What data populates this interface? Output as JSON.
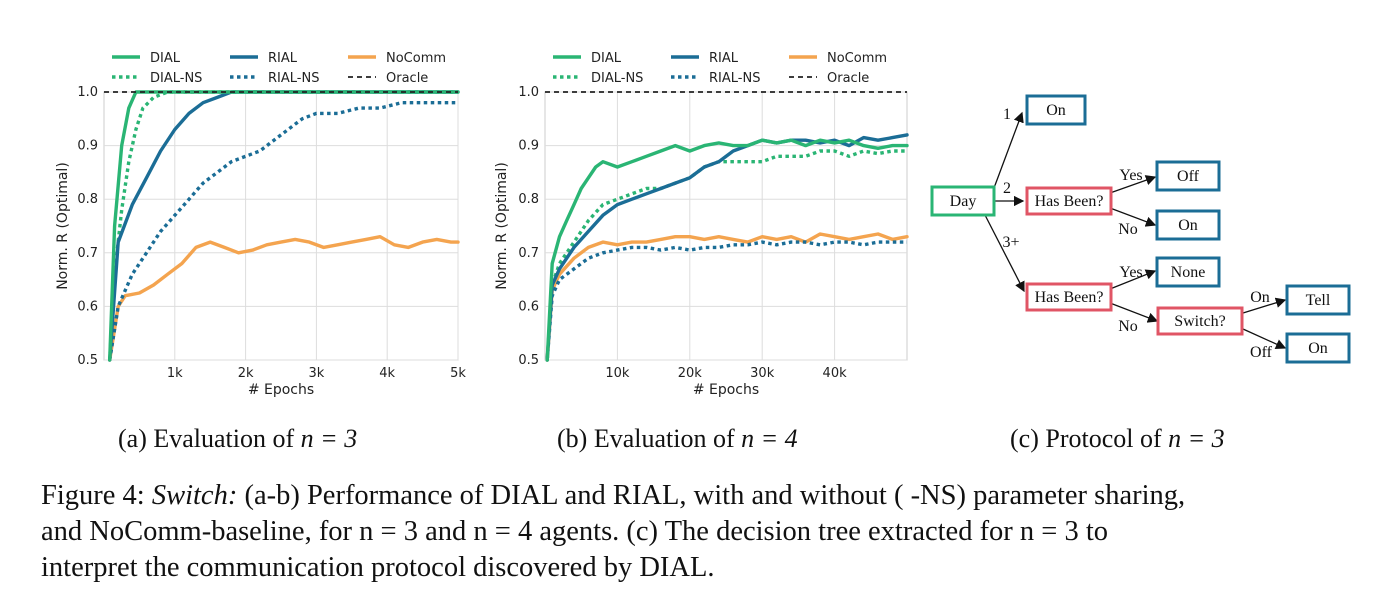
{
  "legend": [
    {
      "label": "DIAL",
      "color": "#2ab574",
      "dash": "solid"
    },
    {
      "label": "RIAL",
      "color": "#1b6d96",
      "dash": "solid"
    },
    {
      "label": "NoComm",
      "color": "#f4a44f",
      "dash": "solid"
    },
    {
      "label": "DIAL-NS",
      "color": "#2ab574",
      "dash": "dotted"
    },
    {
      "label": "RIAL-NS",
      "color": "#1b6d96",
      "dash": "dotted"
    },
    {
      "label": "Oracle",
      "color": "#222222",
      "dash": "dashed"
    }
  ],
  "chart_data": [
    {
      "type": "line",
      "xlabel": "# Epochs",
      "ylabel": "Norm. R (Optimal)",
      "xlim": [
        0,
        5000
      ],
      "ylim": [
        0.5,
        1.0
      ],
      "xticks": [
        1000,
        2000,
        3000,
        4000,
        5000
      ],
      "xtick_labels": [
        "1k",
        "2k",
        "3k",
        "4k",
        "5k"
      ],
      "yticks": [
        0.5,
        0.6,
        0.7,
        0.8,
        0.9,
        1.0
      ],
      "ytick_labels": [
        "0.5",
        "0.6",
        "0.7",
        "0.8",
        "0.9",
        "1.0"
      ],
      "grid": true,
      "series": [
        {
          "name": "DIAL",
          "x": [
            80,
            150,
            250,
            350,
            450,
            600,
            1000,
            2000,
            3000,
            4000,
            5000
          ],
          "y": [
            0.5,
            0.75,
            0.9,
            0.97,
            1.0,
            1.0,
            1.0,
            1.0,
            1.0,
            1.0,
            1.0
          ]
        },
        {
          "name": "DIAL-NS",
          "x": [
            80,
            150,
            250,
            350,
            450,
            550,
            700,
            900,
            1500,
            3000,
            5000
          ],
          "y": [
            0.5,
            0.66,
            0.78,
            0.87,
            0.93,
            0.97,
            0.99,
            1.0,
            1.0,
            1.0,
            1.0
          ]
        },
        {
          "name": "RIAL",
          "x": [
            80,
            200,
            400,
            600,
            800,
            1000,
            1200,
            1400,
            1600,
            1800,
            2000,
            3000,
            4000,
            5000
          ],
          "y": [
            0.5,
            0.72,
            0.79,
            0.84,
            0.89,
            0.93,
            0.96,
            0.98,
            0.99,
            1.0,
            1.0,
            1.0,
            1.0,
            1.0
          ]
        },
        {
          "name": "RIAL-NS",
          "x": [
            80,
            200,
            400,
            600,
            800,
            1000,
            1200,
            1400,
            1600,
            1800,
            2000,
            2200,
            2500,
            2800,
            3000,
            3300,
            3600,
            3900,
            4200,
            4600,
            5000
          ],
          "y": [
            0.5,
            0.6,
            0.66,
            0.7,
            0.74,
            0.77,
            0.8,
            0.83,
            0.85,
            0.87,
            0.88,
            0.89,
            0.92,
            0.95,
            0.96,
            0.96,
            0.97,
            0.97,
            0.98,
            0.98,
            0.98
          ]
        },
        {
          "name": "NoComm",
          "x": [
            80,
            200,
            300,
            500,
            700,
            900,
            1100,
            1300,
            1500,
            1700,
            1900,
            2100,
            2300,
            2500,
            2700,
            2900,
            3100,
            3300,
            3500,
            3700,
            3900,
            4100,
            4300,
            4500,
            4700,
            4900,
            5000
          ],
          "y": [
            0.5,
            0.6,
            0.62,
            0.625,
            0.64,
            0.66,
            0.68,
            0.71,
            0.72,
            0.71,
            0.7,
            0.705,
            0.715,
            0.72,
            0.725,
            0.72,
            0.71,
            0.715,
            0.72,
            0.725,
            0.73,
            0.715,
            0.71,
            0.72,
            0.725,
            0.72,
            0.72
          ]
        },
        {
          "name": "Oracle",
          "x": [
            0,
            5000
          ],
          "y": [
            1.0,
            1.0
          ]
        }
      ]
    },
    {
      "type": "line",
      "xlabel": "# Epochs",
      "ylabel": "Norm. R (Optimal)",
      "xlim": [
        0,
        50000
      ],
      "ylim": [
        0.5,
        1.0
      ],
      "xticks": [
        10000,
        20000,
        30000,
        40000
      ],
      "xtick_labels": [
        "10k",
        "20k",
        "30k",
        "40k"
      ],
      "yticks": [
        0.5,
        0.6,
        0.7,
        0.8,
        0.9,
        1.0
      ],
      "ytick_labels": [
        "0.5",
        "0.6",
        "0.7",
        "0.8",
        "0.9",
        "1.0"
      ],
      "grid": true,
      "series": [
        {
          "name": "DIAL",
          "x": [
            300,
            1000,
            2000,
            3000,
            4000,
            5000,
            6000,
            7000,
            8000,
            10000,
            12000,
            14000,
            16000,
            18000,
            20000,
            22000,
            24000,
            26000,
            28000,
            30000,
            32000,
            34000,
            36000,
            38000,
            40000,
            42000,
            44000,
            46000,
            48000,
            50000
          ],
          "y": [
            0.5,
            0.68,
            0.73,
            0.76,
            0.79,
            0.82,
            0.84,
            0.86,
            0.87,
            0.86,
            0.87,
            0.88,
            0.89,
            0.9,
            0.89,
            0.9,
            0.905,
            0.9,
            0.9,
            0.91,
            0.905,
            0.91,
            0.9,
            0.91,
            0.905,
            0.91,
            0.9,
            0.895,
            0.9,
            0.9
          ]
        },
        {
          "name": "DIAL-NS",
          "x": [
            300,
            1000,
            2000,
            4000,
            6000,
            8000,
            10000,
            12000,
            14000,
            16000,
            18000,
            20000,
            22000,
            24000,
            26000,
            28000,
            30000,
            32000,
            34000,
            36000,
            38000,
            40000,
            42000,
            44000,
            46000,
            48000,
            50000
          ],
          "y": [
            0.5,
            0.64,
            0.68,
            0.72,
            0.76,
            0.79,
            0.8,
            0.81,
            0.82,
            0.82,
            0.83,
            0.84,
            0.86,
            0.87,
            0.87,
            0.87,
            0.87,
            0.88,
            0.88,
            0.88,
            0.89,
            0.89,
            0.88,
            0.89,
            0.885,
            0.89,
            0.89
          ]
        },
        {
          "name": "RIAL",
          "x": [
            300,
            1000,
            2000,
            4000,
            6000,
            8000,
            10000,
            12000,
            14000,
            16000,
            18000,
            20000,
            22000,
            24000,
            26000,
            28000,
            30000,
            32000,
            34000,
            36000,
            38000,
            40000,
            42000,
            44000,
            46000,
            48000,
            50000
          ],
          "y": [
            0.5,
            0.64,
            0.67,
            0.71,
            0.74,
            0.77,
            0.79,
            0.8,
            0.81,
            0.82,
            0.83,
            0.84,
            0.86,
            0.87,
            0.89,
            0.9,
            0.91,
            0.905,
            0.91,
            0.91,
            0.905,
            0.91,
            0.9,
            0.915,
            0.91,
            0.915,
            0.92
          ]
        },
        {
          "name": "RIAL-NS",
          "x": [
            300,
            1000,
            2000,
            4000,
            6000,
            8000,
            10000,
            12000,
            14000,
            16000,
            18000,
            20000,
            22000,
            24000,
            26000,
            28000,
            30000,
            32000,
            34000,
            36000,
            38000,
            40000,
            42000,
            44000,
            46000,
            48000,
            50000
          ],
          "y": [
            0.5,
            0.62,
            0.65,
            0.67,
            0.69,
            0.7,
            0.705,
            0.71,
            0.71,
            0.705,
            0.71,
            0.705,
            0.71,
            0.71,
            0.715,
            0.715,
            0.72,
            0.715,
            0.72,
            0.72,
            0.715,
            0.72,
            0.72,
            0.715,
            0.72,
            0.72,
            0.72
          ]
        },
        {
          "name": "NoComm",
          "x": [
            300,
            1000,
            2000,
            4000,
            6000,
            8000,
            10000,
            12000,
            14000,
            16000,
            18000,
            20000,
            22000,
            24000,
            26000,
            28000,
            30000,
            32000,
            34000,
            36000,
            38000,
            40000,
            42000,
            44000,
            46000,
            48000,
            50000
          ],
          "y": [
            0.5,
            0.63,
            0.66,
            0.69,
            0.71,
            0.72,
            0.715,
            0.72,
            0.72,
            0.725,
            0.73,
            0.73,
            0.725,
            0.73,
            0.725,
            0.72,
            0.73,
            0.725,
            0.73,
            0.72,
            0.735,
            0.73,
            0.725,
            0.73,
            0.735,
            0.725,
            0.73
          ]
        },
        {
          "name": "Oracle",
          "x": [
            0,
            50000
          ],
          "y": [
            1.0,
            1.0
          ]
        }
      ]
    }
  ],
  "tree": {
    "nodes": {
      "day": "Day",
      "on1": "On",
      "hasbeen1": "Has Been?",
      "off": "Off",
      "on2": "On",
      "hasbeen2": "Has Been?",
      "none": "None",
      "switch": "Switch?",
      "tell": "Tell",
      "on3": "On"
    },
    "edges": {
      "e1": "1",
      "e2": "2",
      "e3": "3+",
      "yes1": "Yes",
      "no1": "No",
      "yes2": "Yes",
      "no2": "No",
      "on_edge": "On",
      "off_edge": "Off"
    },
    "colors": {
      "green": "#2ab574",
      "blue": "#1b6d96",
      "red": "#e05565"
    }
  },
  "captions": {
    "a": "(a) Evaluation of",
    "b": "(b) Evaluation of",
    "c": "(c) Protocol of",
    "a_math": "n = 3",
    "b_math": "n = 4",
    "c_math": "n = 3"
  },
  "figure_caption": {
    "label": "Figure 4: ",
    "italic": "Switch:",
    "line1": " (a-b) Performance of DIAL and RIAL, with and without ( -NS) parameter sharing,",
    "line2": "and NoComm-baseline, for n = 3 and n = 4 agents. (c) The decision tree extracted for n = 3 to",
    "line3": "interpret the communication protocol discovered by DIAL."
  }
}
